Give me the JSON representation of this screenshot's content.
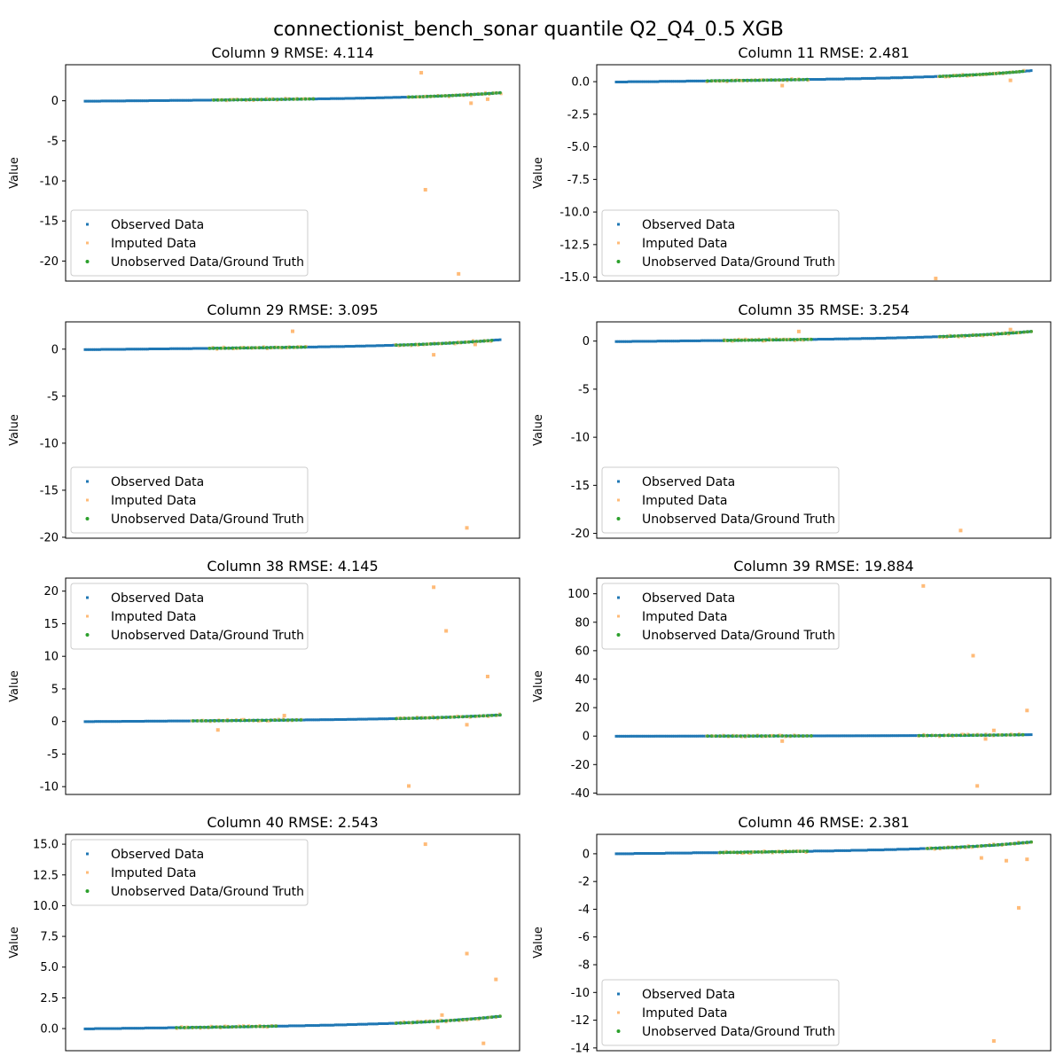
{
  "figure": {
    "title": "connectionist_bench_sonar quantile Q2_Q4_0.5 XGB"
  },
  "legend_labels": [
    "Observed Data",
    "Imputed Data",
    "Unobserved Data/Ground Truth"
  ],
  "colors": {
    "observed": "#1f77b4",
    "imputed": "#ffbb78",
    "unobserved": "#2ca02c"
  },
  "chart_data": [
    {
      "type": "scatter",
      "title": "Column 9 RMSE: 4.114",
      "ylabel": "Value",
      "ylim": [
        -22.5,
        4.5
      ],
      "yticks": [
        0,
        -5,
        -10,
        -15,
        -20
      ],
      "ytick_labels": [
        "0",
        "-5",
        "-10",
        "-15",
        "-20"
      ],
      "legend_position": "lower-left",
      "observed_curve": {
        "start": -0.05,
        "end": 1.0,
        "rise_at": [
          0.3,
          0.65,
          0.88
        ]
      },
      "unobserved_ranges": [
        [
          0.31,
          0.55,
          0.15
        ],
        [
          0.78,
          1.0,
          0.4
        ]
      ],
      "imputed_outliers": [
        [
          0.81,
          3.5
        ],
        [
          0.82,
          -11.1
        ],
        [
          0.9,
          -21.6
        ],
        [
          0.93,
          -0.3
        ],
        [
          0.97,
          0.2
        ]
      ]
    },
    {
      "type": "scatter",
      "title": "Column 11 RMSE: 2.481",
      "ylabel": "Value",
      "ylim": [
        -15.3,
        1.3
      ],
      "yticks": [
        0,
        -2.5,
        -5,
        -7.5,
        -10,
        -12.5,
        -15
      ],
      "ytick_labels": [
        "0.0",
        "-2.5",
        "-5.0",
        "-7.5",
        "-10.0",
        "-12.5",
        "-15.0"
      ],
      "legend_position": "lower-left",
      "observed_curve": {
        "start": -0.02,
        "end": 0.85,
        "rise_at": [
          0.25,
          0.55,
          0.9
        ]
      },
      "unobserved_ranges": [
        [
          0.22,
          0.46,
          0.15
        ],
        [
          0.78,
          0.98,
          0.4
        ]
      ],
      "imputed_outliers": [
        [
          0.4,
          -0.3
        ],
        [
          0.77,
          -15.1
        ],
        [
          0.95,
          0.1
        ]
      ]
    },
    {
      "type": "scatter",
      "title": "Column 29 RMSE: 3.095",
      "ylabel": "Value",
      "ylim": [
        -20.1,
        2.9
      ],
      "yticks": [
        0,
        -5,
        -10,
        -15,
        -20
      ],
      "ytick_labels": [
        "0",
        "-5",
        "-10",
        "-15",
        "-20"
      ],
      "legend_position": "lower-left",
      "observed_curve": {
        "start": -0.05,
        "end": 1.0,
        "rise_at": [
          0.05,
          0.2,
          0.7
        ]
      },
      "unobserved_ranges": [
        [
          0.3,
          0.53,
          0.55
        ],
        [
          0.75,
          0.98,
          0.9
        ]
      ],
      "imputed_outliers": [
        [
          0.5,
          1.9
        ],
        [
          0.84,
          -0.6
        ],
        [
          0.92,
          -19.0
        ],
        [
          0.94,
          0.5
        ]
      ]
    },
    {
      "type": "scatter",
      "title": "Column 35 RMSE: 3.254",
      "ylabel": "Value",
      "ylim": [
        -20.5,
        2.0
      ],
      "yticks": [
        0,
        -5,
        -10,
        -15,
        -20
      ],
      "ytick_labels": [
        "0",
        "-5",
        "-10",
        "-15",
        "-20"
      ],
      "legend_position": "lower-left",
      "observed_curve": {
        "start": -0.05,
        "end": 1.0,
        "rise_at": [
          0.3,
          0.6,
          0.85
        ]
      },
      "unobserved_ranges": [
        [
          0.26,
          0.47,
          0.25
        ],
        [
          0.78,
          1.0,
          0.8
        ]
      ],
      "imputed_outliers": [
        [
          0.44,
          1.0
        ],
        [
          0.83,
          -19.7
        ],
        [
          0.95,
          1.2
        ]
      ]
    },
    {
      "type": "scatter",
      "title": "Column 38 RMSE: 4.145",
      "ylabel": "Value",
      "ylim": [
        -11.2,
        22.0
      ],
      "yticks": [
        20,
        15,
        10,
        5,
        0,
        -5,
        -10
      ],
      "ytick_labels": [
        "20",
        "15",
        "10",
        "5",
        "0",
        "-5",
        "-10"
      ],
      "legend_position": "upper-left",
      "observed_curve": {
        "start": -0.02,
        "end": 1.0,
        "rise_at": [
          0.1,
          0.55,
          0.9
        ]
      },
      "unobserved_ranges": [
        [
          0.26,
          0.52,
          0.2
        ],
        [
          0.75,
          1.0,
          0.6
        ]
      ],
      "imputed_outliers": [
        [
          0.32,
          -1.3
        ],
        [
          0.48,
          0.9
        ],
        [
          0.78,
          -9.9
        ],
        [
          0.84,
          20.6
        ],
        [
          0.87,
          13.9
        ],
        [
          0.92,
          -0.5
        ],
        [
          0.97,
          6.9
        ]
      ]
    },
    {
      "type": "scatter",
      "title": "Column 39 RMSE: 19.884",
      "ylabel": "Value",
      "ylim": [
        -41.0,
        111.0
      ],
      "yticks": [
        100,
        80,
        60,
        40,
        20,
        0,
        -20,
        -40
      ],
      "ytick_labels": [
        "100",
        "80",
        "60",
        "40",
        "20",
        "0",
        "-20",
        "-40"
      ],
      "legend_position": "upper-left",
      "observed_curve": {
        "start": -0.1,
        "end": 1.0,
        "rise_at": [
          0.5,
          0.8,
          0.95
        ]
      },
      "unobserved_ranges": [
        [
          0.22,
          0.47,
          0.1
        ],
        [
          0.73,
          0.98,
          0.5
        ]
      ],
      "imputed_outliers": [
        [
          0.4,
          -3.5
        ],
        [
          0.74,
          105.5
        ],
        [
          0.86,
          56.5
        ],
        [
          0.87,
          -35.0
        ],
        [
          0.89,
          -2.0
        ],
        [
          0.91,
          4.0
        ],
        [
          0.99,
          18.0
        ]
      ]
    },
    {
      "type": "scatter",
      "title": "Column 40 RMSE: 2.543",
      "ylabel": "Value",
      "ylim": [
        -1.8,
        15.8
      ],
      "yticks": [
        15,
        12.5,
        10,
        7.5,
        5,
        2.5,
        0
      ],
      "ytick_labels": [
        "15.0",
        "12.5",
        "10.0",
        "7.5",
        "5.0",
        "2.5",
        "0.0"
      ],
      "legend_position": "upper-left",
      "observed_curve": {
        "start": -0.02,
        "end": 1.0,
        "rise_at": [
          0.1,
          0.5,
          0.88
        ]
      },
      "unobserved_ranges": [
        [
          0.22,
          0.46,
          0.2
        ],
        [
          0.75,
          1.0,
          0.5
        ]
      ],
      "imputed_outliers": [
        [
          0.82,
          15.0
        ],
        [
          0.85,
          0.1
        ],
        [
          0.86,
          1.1
        ],
        [
          0.92,
          6.1
        ],
        [
          0.96,
          -1.2
        ],
        [
          0.99,
          4.0
        ]
      ]
    },
    {
      "type": "scatter",
      "title": "Column 46 RMSE: 2.381",
      "ylabel": "Value",
      "ylim": [
        -14.2,
        1.4
      ],
      "yticks": [
        0,
        -2,
        -4,
        -6,
        -8,
        -10,
        -12,
        -14
      ],
      "ytick_labels": [
        "0",
        "-2",
        "-4",
        "-6",
        "-8",
        "-10",
        "-12",
        "-14"
      ],
      "legend_position": "lower-left",
      "observed_curve": {
        "start": 0.0,
        "end": 0.85,
        "rise_at": [
          0.12,
          0.4,
          0.75
        ]
      },
      "unobserved_ranges": [
        [
          0.25,
          0.46,
          0.1
        ],
        [
          0.75,
          1.0,
          0.35
        ]
      ],
      "imputed_outliers": [
        [
          0.88,
          -0.3
        ],
        [
          0.91,
          -13.5
        ],
        [
          0.94,
          -0.5
        ],
        [
          0.97,
          -3.9
        ],
        [
          0.99,
          -0.4
        ]
      ]
    }
  ]
}
